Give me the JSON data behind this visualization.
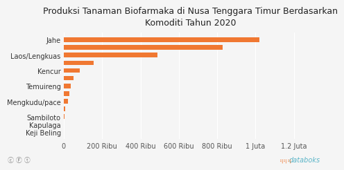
{
  "title": "Produksi Tanaman Biofarmaka di Nusa Tenggara Timur Berdasarkan\nKomoditi Tahun 2020",
  "categories": [
    "Keji Beling",
    "Kapulaga",
    "Sambiloto",
    "",
    "Mengkudu/pace",
    "",
    "Temuireng",
    "",
    "Kencur",
    "",
    "Laos/Lengkuas",
    "",
    "Jahe"
  ],
  "values": [
    0,
    200,
    4000,
    8000,
    22000,
    28000,
    38000,
    50000,
    85000,
    155000,
    490000,
    830000,
    1020000
  ],
  "bar_color": "#F07832",
  "background_color": "#F5F5F5",
  "xlim": [
    0,
    1320000
  ],
  "xticks": [
    0,
    200000,
    400000,
    600000,
    800000,
    1000000,
    1200000
  ],
  "xtick_labels": [
    "0",
    "200 Ribu",
    "400 Ribu",
    "600 Ribu",
    "800 Ribu",
    "1 Juta",
    "1.2 Juta"
  ],
  "title_fontsize": 9.0,
  "tick_fontsize": 7.0,
  "label_fontsize": 7.0
}
